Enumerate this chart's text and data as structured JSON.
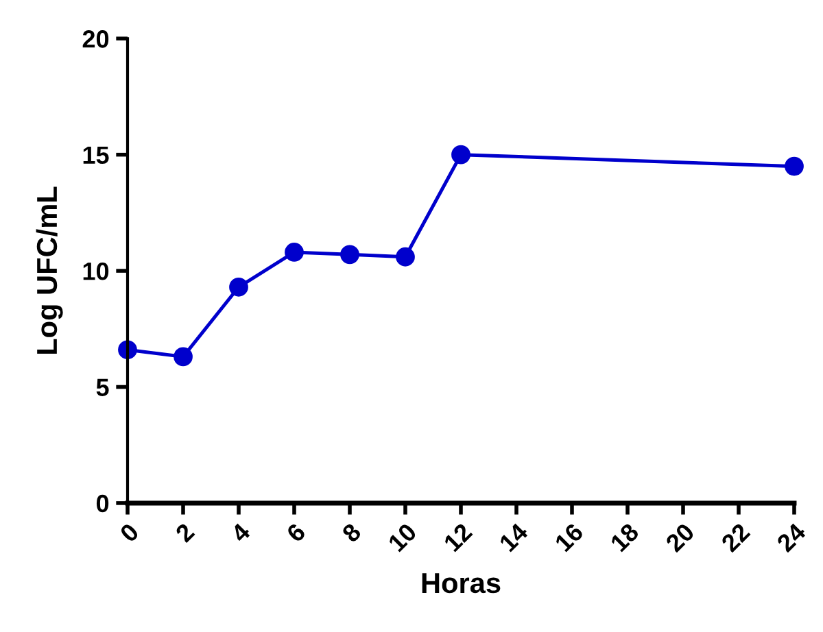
{
  "chart_data": {
    "type": "line",
    "xlabel": "Horas",
    "ylabel": "Log UFC/mL",
    "x": [
      0,
      2,
      4,
      6,
      8,
      10,
      12,
      24
    ],
    "series": [
      {
        "color": "#0000cc",
        "values": [
          6.6,
          6.3,
          9.3,
          10.8,
          10.7,
          10.6,
          15.0,
          14.5
        ]
      }
    ],
    "xlim": [
      0,
      24
    ],
    "xticks": [
      0,
      2,
      4,
      6,
      8,
      10,
      12,
      14,
      16,
      18,
      20,
      22,
      24
    ],
    "ylim": [
      0,
      20
    ],
    "yticks": [
      0,
      5,
      10,
      15,
      20
    ],
    "grid": false,
    "legend": false,
    "marker": "circle",
    "line_style": "solid"
  }
}
